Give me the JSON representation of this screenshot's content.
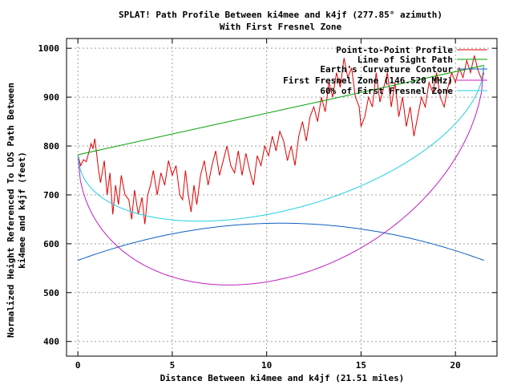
{
  "chart_data": {
    "type": "line",
    "title": "SPLAT! Path Profile Between ki4mee and k4jf (277.85° azimuth)",
    "subtitle": "With First Fresnel Zone",
    "xlabel": "Distance Between ki4mee and k4jf (21.51 miles)",
    "ylabel_line1": "Normalized Height Referenced To LOS Path Between",
    "ylabel_line2": "ki4mee and k4jf (feet)",
    "xlim": [
      -0.6,
      22.2
    ],
    "ylim": [
      370,
      1020
    ],
    "xticks": [
      0,
      5,
      10,
      15,
      20
    ],
    "yticks": [
      400,
      500,
      600,
      700,
      800,
      900,
      1000
    ],
    "grid": true,
    "legend_position": "top-right",
    "colors": {
      "profile": "#e00000",
      "los": "#00a000",
      "curvature": "#1060c0",
      "fresnel": "#c020c0",
      "fresnel60": "#20d0e0",
      "grid": "#a0a0a0"
    },
    "series": [
      {
        "name": "Point-to-Point Profile",
        "color": "#e00000",
        "x": [
          0,
          0.15,
          0.3,
          0.45,
          0.6,
          0.7,
          0.8,
          0.9,
          1.0,
          1.1,
          1.2,
          1.4,
          1.55,
          1.7,
          1.85,
          2.0,
          2.15,
          2.3,
          2.5,
          2.7,
          2.85,
          3.0,
          3.2,
          3.4,
          3.55,
          3.7,
          3.85,
          4.0,
          4.2,
          4.4,
          4.6,
          4.8,
          5.0,
          5.2,
          5.4,
          5.55,
          5.7,
          5.85,
          6.0,
          6.15,
          6.3,
          6.5,
          6.7,
          6.9,
          7.1,
          7.3,
          7.5,
          7.7,
          7.9,
          8.1,
          8.3,
          8.5,
          8.7,
          8.9,
          9.1,
          9.3,
          9.5,
          9.7,
          9.9,
          10.1,
          10.3,
          10.5,
          10.7,
          10.9,
          11.1,
          11.3,
          11.5,
          11.7,
          11.9,
          12.1,
          12.3,
          12.5,
          12.7,
          12.9,
          13.1,
          13.3,
          13.5,
          13.7,
          13.9,
          14.1,
          14.3,
          14.5,
          14.7,
          14.9,
          15.0,
          15.2,
          15.4,
          15.6,
          15.8,
          16.0,
          16.2,
          16.4,
          16.6,
          16.8,
          17.0,
          17.2,
          17.4,
          17.6,
          17.8,
          18.0,
          18.2,
          18.4,
          18.6,
          18.8,
          19.0,
          19.2,
          19.4,
          19.6,
          19.8,
          20.0,
          20.2,
          20.4,
          20.6,
          20.8,
          21.0,
          21.2,
          21.4,
          21.51
        ],
        "values": [
          782,
          760,
          772,
          768,
          790,
          805,
          795,
          815,
          782,
          750,
          725,
          770,
          700,
          745,
          660,
          720,
          680,
          740,
          700,
          690,
          650,
          710,
          660,
          695,
          640,
          700,
          720,
          750,
          700,
          745,
          720,
          770,
          740,
          760,
          700,
          690,
          750,
          700,
          665,
          720,
          680,
          740,
          770,
          720,
          760,
          790,
          740,
          770,
          800,
          760,
          745,
          790,
          740,
          785,
          750,
          720,
          780,
          760,
          800,
          780,
          820,
          790,
          830,
          810,
          770,
          800,
          760,
          820,
          850,
          810,
          860,
          880,
          850,
          900,
          870,
          930,
          900,
          950,
          920,
          980,
          940,
          960,
          900,
          880,
          840,
          860,
          900,
          880,
          950,
          890,
          920,
          950,
          880,
          930,
          860,
          900,
          840,
          880,
          820,
          860,
          900,
          880,
          930,
          910,
          950,
          900,
          880,
          920,
          950,
          930,
          960,
          940,
          975,
          950,
          985,
          955,
          935,
          950
        ]
      },
      {
        "name": "Line of Sight Path",
        "color": "#00a000",
        "x": [
          0,
          21.51
        ],
        "values": [
          782,
          965
        ]
      },
      {
        "name": "Earth's Curvature Contour",
        "color": "#1060c0",
        "function": "parabola",
        "ends_value": 566,
        "peak_value": 642
      },
      {
        "name": "First Fresnel Zone (146.520 MHz)",
        "color": "#c020c0",
        "function": "fresnel",
        "bulge": 346,
        "top": true
      },
      {
        "name": "60% of First Fresnel Zone",
        "color": "#20d0e0",
        "function": "fresnel",
        "bulge": 208,
        "top": false
      }
    ]
  }
}
